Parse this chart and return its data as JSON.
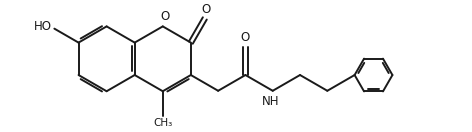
{
  "bg_color": "#ffffff",
  "line_color": "#1a1a1a",
  "line_width": 1.4,
  "font_size": 8.5,
  "figsize": [
    4.72,
    1.32
  ],
  "dpi": 100,
  "xlim": [
    0,
    10
  ],
  "ylim": [
    0,
    2.8
  ]
}
